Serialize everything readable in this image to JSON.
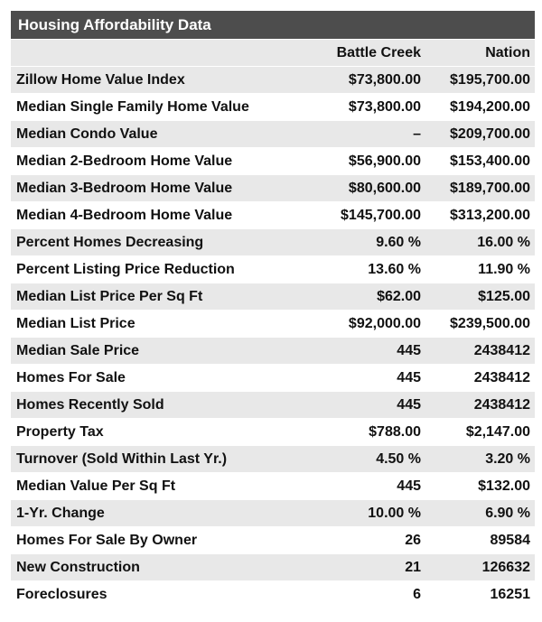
{
  "table": {
    "title": "Housing Affordability Data",
    "columns": [
      "Battle Creek",
      "Nation"
    ],
    "rows": [
      [
        "Zillow Home Value Index",
        "$73,800.00",
        "$195,700.00"
      ],
      [
        "Median Single Family Home Value",
        "$73,800.00",
        "$194,200.00"
      ],
      [
        "Median Condo Value",
        "–",
        "$209,700.00"
      ],
      [
        "Median 2-Bedroom Home Value",
        "$56,900.00",
        "$153,400.00"
      ],
      [
        "Median 3-Bedroom Home Value",
        "$80,600.00",
        "$189,700.00"
      ],
      [
        "Median 4-Bedroom Home Value",
        "$145,700.00",
        "$313,200.00"
      ],
      [
        "Percent Homes Decreasing",
        "9.60 %",
        "16.00 %"
      ],
      [
        "Percent Listing Price Reduction",
        "13.60 %",
        "11.90 %"
      ],
      [
        "Median List Price Per Sq Ft",
        "$62.00",
        "$125.00"
      ],
      [
        "Median List Price",
        "$92,000.00",
        "$239,500.00"
      ],
      [
        "Median Sale Price",
        "445",
        "2438412"
      ],
      [
        "Homes For Sale",
        "445",
        "2438412"
      ],
      [
        "Homes Recently Sold",
        "445",
        "2438412"
      ],
      [
        "Property Tax",
        "$788.00",
        "$2,147.00"
      ],
      [
        "Turnover (Sold Within Last Yr.)",
        "4.50 %",
        "3.20 %"
      ],
      [
        "Median Value Per Sq Ft",
        "445",
        "$132.00"
      ],
      [
        "1-Yr. Change",
        "10.00 %",
        "6.90 %"
      ],
      [
        "Homes For Sale By Owner",
        "26",
        "89584"
      ],
      [
        "New Construction",
        "21",
        "126632"
      ],
      [
        "Foreclosures",
        "6",
        "16251"
      ]
    ]
  }
}
